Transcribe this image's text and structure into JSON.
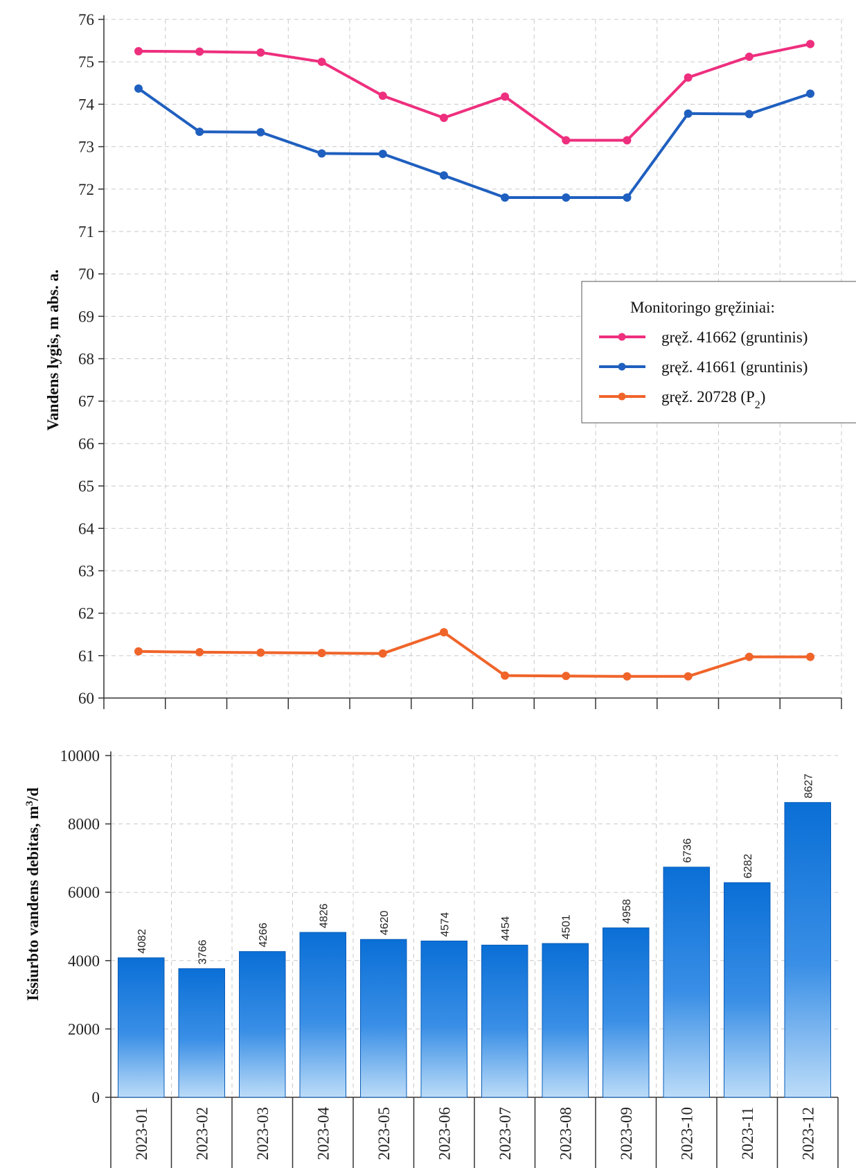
{
  "chart_data": [
    {
      "type": "line",
      "ylabel": "Vandens lygis, m abs. a.",
      "ylim": [
        60,
        76
      ],
      "yticks": [
        "60",
        "61",
        "62",
        "63",
        "64",
        "65",
        "66",
        "67",
        "68",
        "69",
        "70",
        "71",
        "72",
        "73",
        "74",
        "75",
        "76"
      ],
      "categories": [
        "2023-01",
        "2023-02",
        "2023-03",
        "2023-04",
        "2023-05",
        "2023-06",
        "2023-07",
        "2023-08",
        "2023-09",
        "2023-10",
        "2023-11",
        "2023-12"
      ],
      "legend": {
        "title": "Monitoringo gręžiniai:",
        "placement": "right"
      },
      "series": [
        {
          "name": "gręž. 41662 (gruntinis)",
          "color": "#ee2f7e",
          "values": [
            75.25,
            75.24,
            75.22,
            75.0,
            74.2,
            73.68,
            74.18,
            73.15,
            73.15,
            74.63,
            75.12,
            75.42
          ]
        },
        {
          "name": "gręž. 41661 (gruntinis)",
          "color": "#1f5fbf",
          "values": [
            74.37,
            73.35,
            73.34,
            72.84,
            72.83,
            72.32,
            71.8,
            71.8,
            71.8,
            73.78,
            73.77,
            74.25
          ]
        },
        {
          "name_prefix": "gręž. 20728 (P",
          "name_sub": "2",
          "name_suffix": ")",
          "color": "#f0642a",
          "values": [
            61.1,
            61.08,
            61.07,
            61.06,
            61.05,
            61.55,
            60.53,
            60.52,
            60.51,
            60.51,
            60.97,
            60.97
          ]
        }
      ]
    },
    {
      "type": "bar",
      "ylabel_main": "Išsiurbto vandens debitas, m",
      "ylabel_sup": "3",
      "ylabel_end": "/d",
      "ylim": [
        0,
        10000
      ],
      "yticks": [
        "0",
        "2000",
        "4000",
        "6000",
        "8000",
        "10000"
      ],
      "categories": [
        "2023-01",
        "2023-02",
        "2023-03",
        "2023-04",
        "2023-05",
        "2023-06",
        "2023-07",
        "2023-08",
        "2023-09",
        "2023-10",
        "2023-11",
        "2023-12"
      ],
      "values": [
        4082,
        3766,
        4266,
        4826,
        4620,
        4574,
        4454,
        4501,
        4958,
        6736,
        6282,
        8627
      ],
      "bar_color_top": "#0a6fd6",
      "bar_color_bottom": "#bcdcf8"
    }
  ]
}
